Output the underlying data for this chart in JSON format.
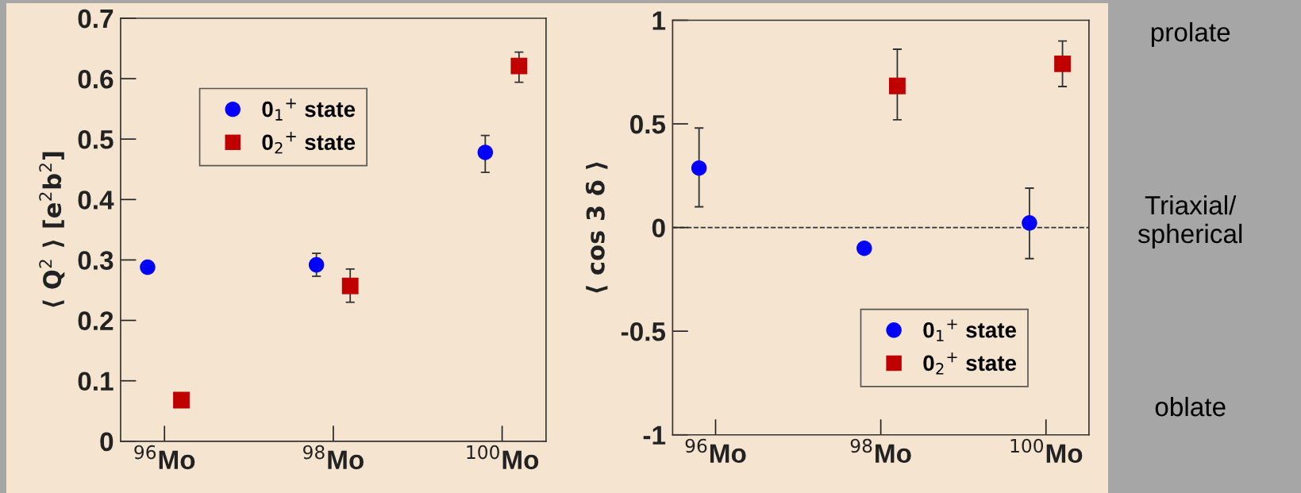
{
  "chart_data": [
    {
      "type": "scatter",
      "ylabel": "⟨ Q$^{2}$ ⟩ [e$^{2}$b$^{2}$]",
      "xlim": [
        95.48,
        100.52
      ],
      "xticks": [
        {
          "value": 96,
          "label": "$^{96}$Mo"
        },
        {
          "value": 98,
          "label": "$^{98}$Mo"
        },
        {
          "value": 100,
          "label": "$^{100}$Mo"
        }
      ],
      "ylim": [
        0,
        0.7
      ],
      "yticks": [
        0,
        0.1,
        0.2,
        0.3,
        0.4,
        0.5,
        0.6,
        0.7
      ],
      "grid": false,
      "legend": "top left",
      "series": [
        {
          "name": "0$_{1}$$^{+}$ state",
          "color": "#0000ff",
          "marker": "circle",
          "x": [
            95.8,
            97.8,
            99.8
          ],
          "values": [
            0.288,
            0.292,
            0.478
          ],
          "errors": [
            null,
            [
              0.273,
              0.311
            ],
            [
              0.445,
              0.506
            ]
          ]
        },
        {
          "name": "0$_{2}$$^{+}$ state",
          "color": "#c00000",
          "marker": "square",
          "x": [
            96.2,
            98.2,
            100.2
          ],
          "values": [
            0.068,
            0.257,
            0.621
          ],
          "errors": [
            null,
            [
              0.23,
              0.285
            ],
            [
              0.594,
              0.644
            ]
          ]
        }
      ]
    },
    {
      "type": "scatter",
      "ylabel": "⟨ cos 3 δ ⟩",
      "xlim": [
        95.48,
        100.52
      ],
      "xticks": [
        {
          "value": 96,
          "label": "$^{96}$Mo"
        },
        {
          "value": 98,
          "label": "$^{98}$Mo"
        },
        {
          "value": 100,
          "label": "$^{100}$Mo"
        }
      ],
      "ylim": [
        -1,
        1
      ],
      "yticks": [
        -1,
        -0.5,
        0,
        0.5,
        1
      ],
      "grid": false,
      "legend": "bottom right",
      "ref_lines": [
        {
          "axis": "y",
          "value": 0,
          "line_style": "dashed",
          "color": "#333333"
        }
      ],
      "annotations": [
        "prolate",
        "Triaxial/\nspherical",
        "oblate"
      ],
      "series": [
        {
          "name": "0$_{1}$$^{+}$ state",
          "color": "#0000ff",
          "marker": "circle",
          "x": [
            95.8,
            97.8,
            99.8
          ],
          "values": [
            0.287,
            -0.1,
            0.022
          ],
          "errors": [
            [
              0.1,
              0.48
            ],
            null,
            [
              -0.15,
              0.19
            ]
          ]
        },
        {
          "name": "0$_{2}$$^{+}$ state",
          "color": "#c00000",
          "marker": "square",
          "x": [
            98.2,
            100.2
          ],
          "values": [
            0.683,
            0.79
          ],
          "errors": [
            [
              0.52,
              0.86
            ],
            [
              0.68,
              0.9
            ]
          ]
        }
      ]
    }
  ]
}
